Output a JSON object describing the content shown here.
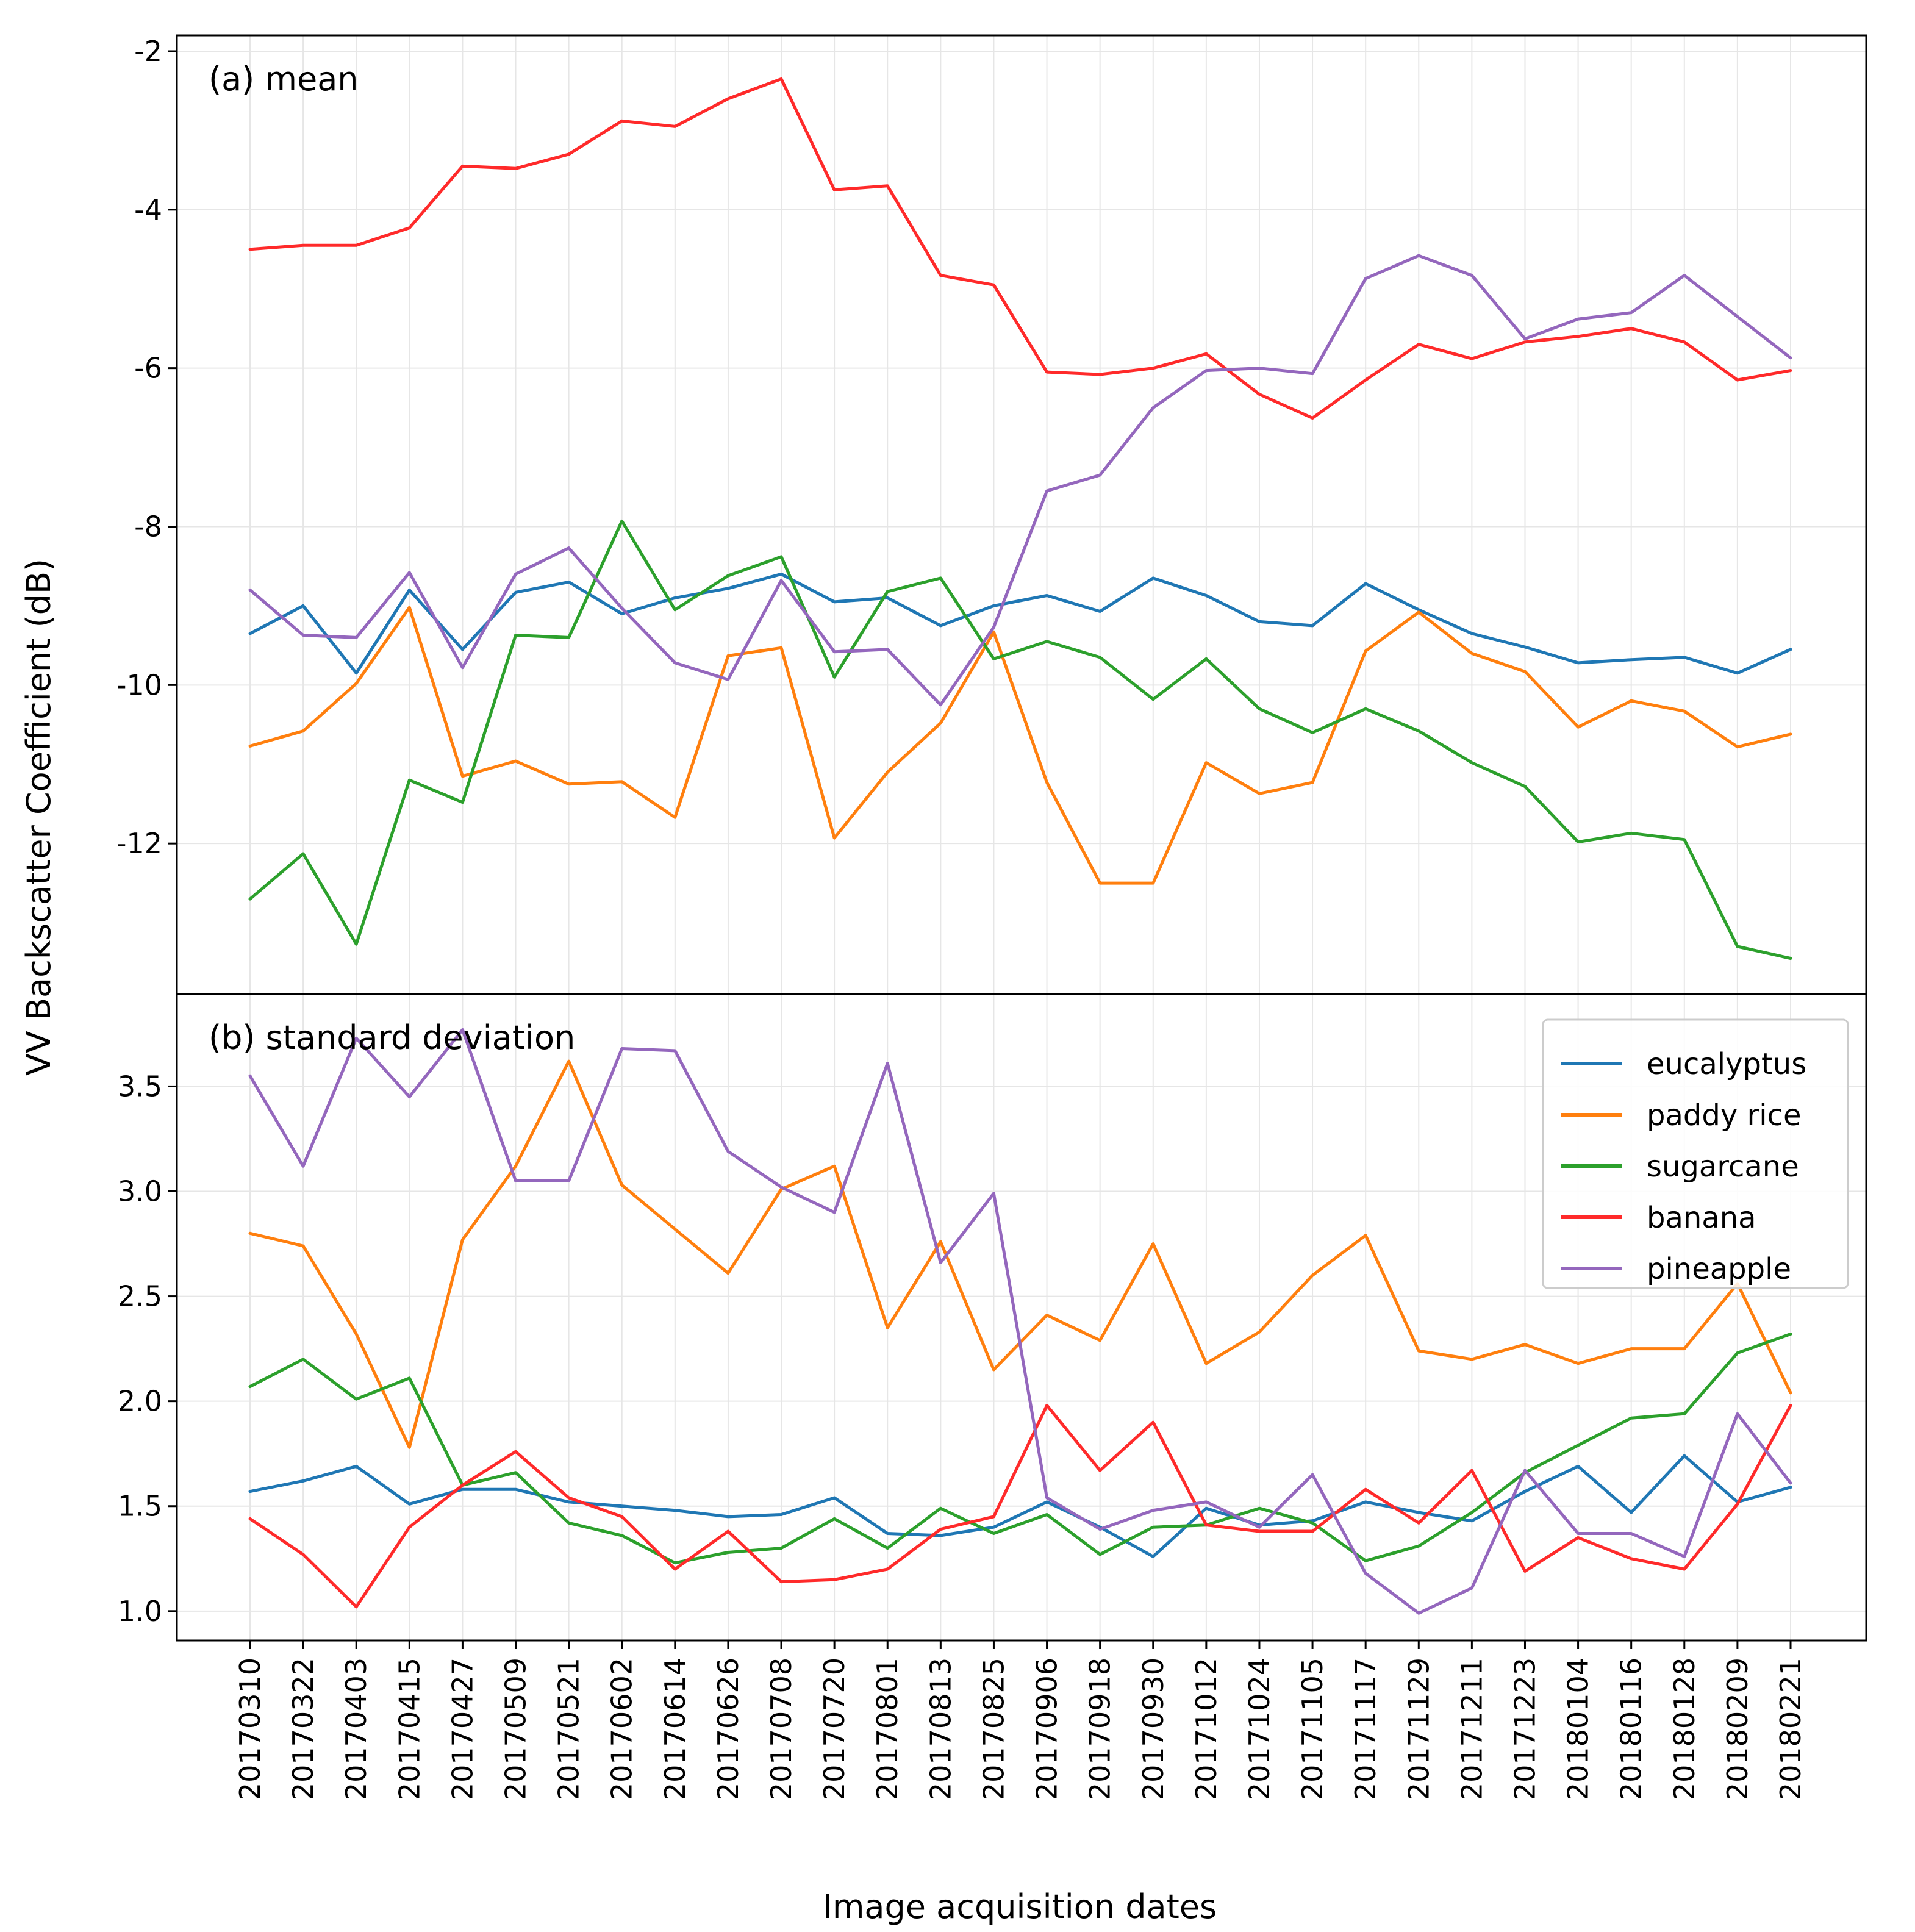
{
  "chart_data": {
    "type": "line",
    "ylabel": "VV Backscatter Coefficient (dB)",
    "xlabel": "Image acquisition dates",
    "categories": [
      "20170310",
      "20170322",
      "20170403",
      "20170415",
      "20170427",
      "20170509",
      "20170521",
      "20170602",
      "20170614",
      "20170626",
      "20170708",
      "20170720",
      "20170801",
      "20170813",
      "20170825",
      "20170906",
      "20170918",
      "20170930",
      "20171012",
      "20171024",
      "20171105",
      "20171117",
      "20171129",
      "20171211",
      "20171223",
      "20180104",
      "20180116",
      "20180128",
      "20180209",
      "20180221"
    ],
    "colors": {
      "eucalyptus": "#1f77b4",
      "paddy rice": "#ff7f0e",
      "sugarcane": "#2ca02c",
      "banana": "#ff2a2a",
      "pineapple": "#9467bd"
    },
    "legend": [
      "eucalyptus",
      "paddy rice",
      "sugarcane",
      "banana",
      "pineapple"
    ],
    "panels": [
      {
        "label": "(a) mean",
        "ylim": [
          -13.9,
          -1.8
        ],
        "yticks": [
          "-2",
          "-4",
          "-6",
          "-8",
          "-10",
          "-12"
        ],
        "ytick_values": [
          -2,
          -4,
          -6,
          -8,
          -10,
          -12
        ],
        "series": [
          {
            "name": "eucalyptus",
            "values": [
              -9.35,
              -9.0,
              -9.85,
              -8.8,
              -9.55,
              -8.83,
              -8.7,
              -9.1,
              -8.9,
              -8.78,
              -8.6,
              -8.95,
              -8.9,
              -9.25,
              -9.0,
              -8.87,
              -9.07,
              -8.65,
              -8.87,
              -9.2,
              -9.25,
              -8.72,
              -9.05,
              -9.35,
              -9.52,
              -9.72,
              -9.68,
              -9.65,
              -9.85,
              -9.55
            ]
          },
          {
            "name": "paddy rice",
            "values": [
              -10.77,
              -10.58,
              -9.98,
              -9.02,
              -11.15,
              -10.96,
              -11.25,
              -11.22,
              -11.67,
              -9.63,
              -9.53,
              -11.93,
              -11.1,
              -10.48,
              -9.33,
              -11.23,
              -12.5,
              -12.5,
              -10.98,
              -11.37,
              -11.23,
              -9.57,
              -9.08,
              -9.6,
              -9.83,
              -10.53,
              -10.2,
              -10.33,
              -10.78,
              -10.62
            ]
          },
          {
            "name": "sugarcane",
            "values": [
              -12.7,
              -12.13,
              -13.27,
              -11.2,
              -11.48,
              -9.37,
              -9.4,
              -7.93,
              -9.05,
              -8.62,
              -8.38,
              -9.9,
              -8.82,
              -8.65,
              -9.67,
              -9.45,
              -9.65,
              -10.18,
              -9.67,
              -10.3,
              -10.6,
              -10.3,
              -10.58,
              -10.98,
              -11.28,
              -11.98,
              -11.87,
              -11.95,
              -13.3,
              -13.45
            ]
          },
          {
            "name": "banana",
            "values": [
              -4.5,
              -4.45,
              -4.45,
              -4.23,
              -3.45,
              -3.48,
              -3.3,
              -2.88,
              -2.95,
              -2.6,
              -2.35,
              -3.75,
              -3.7,
              -4.83,
              -4.95,
              -6.05,
              -6.08,
              -6.0,
              -5.82,
              -6.33,
              -6.63,
              -6.15,
              -5.7,
              -5.88,
              -5.67,
              -5.6,
              -5.5,
              -5.67,
              -6.15,
              -6.03
            ]
          },
          {
            "name": "pineapple",
            "values": [
              -8.8,
              -9.37,
              -9.4,
              -8.58,
              -9.78,
              -8.6,
              -8.27,
              -9.03,
              -9.72,
              -9.93,
              -8.68,
              -9.58,
              -9.55,
              -10.25,
              -9.27,
              -7.55,
              -7.35,
              -6.5,
              -6.03,
              -6.0,
              -6.07,
              -4.87,
              -4.58,
              -4.83,
              -5.63,
              -5.38,
              -5.3,
              -4.83,
              -5.35,
              -5.87
            ]
          }
        ]
      },
      {
        "label": "(b) standard deviation",
        "ylim": [
          0.86,
          3.94
        ],
        "yticks": [
          "1.0",
          "1.5",
          "2.0",
          "2.5",
          "3.0",
          "3.5"
        ],
        "ytick_values": [
          1.0,
          1.5,
          2.0,
          2.5,
          3.0,
          3.5
        ],
        "series": [
          {
            "name": "eucalyptus",
            "values": [
              1.57,
              1.62,
              1.69,
              1.51,
              1.58,
              1.58,
              1.52,
              1.5,
              1.48,
              1.45,
              1.46,
              1.54,
              1.37,
              1.36,
              1.4,
              1.52,
              1.4,
              1.26,
              1.49,
              1.41,
              1.43,
              1.52,
              1.47,
              1.43,
              1.57,
              1.69,
              1.47,
              1.74,
              1.52,
              1.59
            ]
          },
          {
            "name": "paddy rice",
            "values": [
              2.8,
              2.74,
              2.32,
              1.78,
              2.77,
              3.12,
              3.62,
              3.03,
              2.82,
              2.61,
              3.01,
              3.12,
              2.35,
              2.76,
              2.15,
              2.41,
              2.29,
              2.75,
              2.18,
              2.33,
              2.6,
              2.79,
              2.24,
              2.2,
              2.27,
              2.18,
              2.25,
              2.25,
              2.56,
              2.04
            ]
          },
          {
            "name": "sugarcane",
            "values": [
              2.07,
              2.2,
              2.01,
              2.11,
              1.6,
              1.66,
              1.42,
              1.36,
              1.23,
              1.28,
              1.3,
              1.44,
              1.3,
              1.49,
              1.37,
              1.46,
              1.27,
              1.4,
              1.41,
              1.49,
              1.42,
              1.24,
              1.31,
              1.47,
              1.66,
              1.79,
              1.92,
              1.94,
              2.23,
              2.32
            ]
          },
          {
            "name": "banana",
            "values": [
              1.44,
              1.27,
              1.02,
              1.4,
              1.6,
              1.76,
              1.54,
              1.45,
              1.2,
              1.38,
              1.14,
              1.15,
              1.2,
              1.39,
              1.45,
              1.98,
              1.67,
              1.9,
              1.41,
              1.38,
              1.38,
              1.58,
              1.42,
              1.67,
              1.19,
              1.35,
              1.25,
              1.2,
              1.51,
              1.98
            ]
          },
          {
            "name": "pineapple",
            "values": [
              3.55,
              3.12,
              3.73,
              3.45,
              3.77,
              3.05,
              3.05,
              3.68,
              3.67,
              3.19,
              3.02,
              2.9,
              3.61,
              2.66,
              2.99,
              1.54,
              1.39,
              1.48,
              1.52,
              1.4,
              1.65,
              1.18,
              0.99,
              1.11,
              1.67,
              1.37,
              1.37,
              1.26,
              1.94,
              1.61
            ]
          }
        ]
      }
    ]
  }
}
